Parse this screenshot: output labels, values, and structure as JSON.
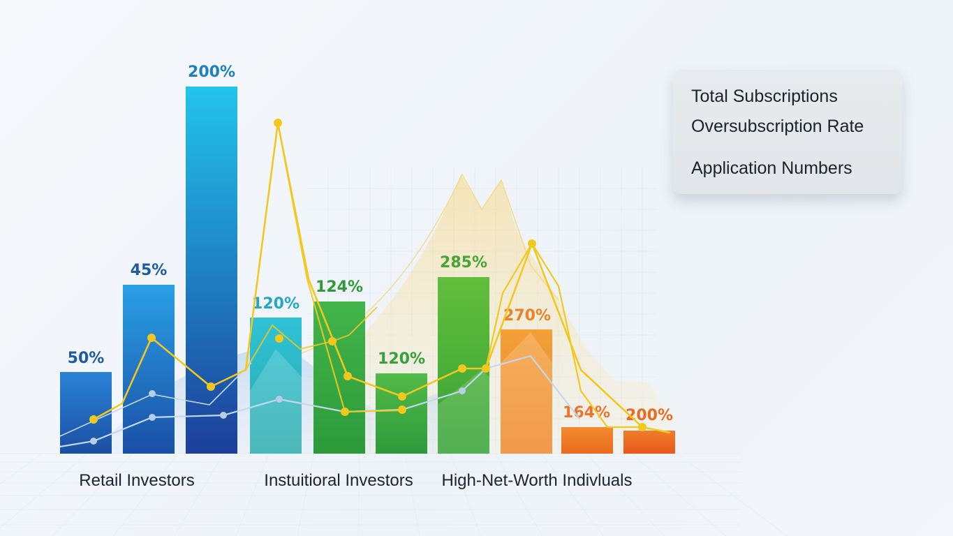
{
  "legend": {
    "items": [
      "Total Subscriptions",
      "Oversubscription Rate",
      "Application Numbers"
    ]
  },
  "chart_data": {
    "type": "bar",
    "groups": [
      "Retail Investors",
      "Instuitioral Investors",
      "High-Net-Worth Indivluals"
    ],
    "bars": [
      {
        "label": "50%",
        "value": 50,
        "group": "Retail Investors"
      },
      {
        "label": "45%",
        "value": 45,
        "group": "Retail Investors"
      },
      {
        "label": "200%",
        "value": 200,
        "group": "Retail Investors"
      },
      {
        "label": "120%",
        "value": 120,
        "group": "Instuitioral Investors"
      },
      {
        "label": "124%",
        "value": 124,
        "group": "Instuitioral Investors"
      },
      {
        "label": "120%",
        "value": 120,
        "group": "Instuitioral Investors"
      },
      {
        "label": "285%",
        "value": 285,
        "group": "High-Net-Worth Indivluals"
      },
      {
        "label": "270%",
        "value": 270,
        "group": "High-Net-Worth Indivluals"
      },
      {
        "label": "164%",
        "value": 164,
        "group": "High-Net-Worth Indivluals"
      },
      {
        "label": "200%",
        "value": 200,
        "group": "High-Net-Worth Indivluals"
      }
    ],
    "series": [
      {
        "name": "Oversubscription Rate",
        "type": "line",
        "values": [
          45,
          70,
          35,
          190,
          60,
          62,
          40,
          50,
          120,
          48,
          45,
          45
        ],
        "color": "#f2c81e"
      },
      {
        "name": "Application Numbers",
        "type": "line",
        "values": [
          20,
          33,
          25,
          28,
          25,
          26,
          28,
          26,
          25,
          26
        ],
        "color": "#a9c6e8"
      }
    ],
    "colors": {
      "bars": [
        [
          "#2a83d6",
          "#1a4fa3"
        ],
        [
          "#2aa0e6",
          "#1a4fa6"
        ],
        [
          "#22c4ec",
          "#1c3f9a"
        ],
        [
          "#2fc2d6",
          "#27a9ab"
        ],
        [
          "#42b54a",
          "#2c9a3a"
        ],
        [
          "#52ba48",
          "#2e9a3c"
        ],
        [
          "#63be3c",
          "#34a236"
        ],
        [
          "#f3a038",
          "#f08324"
        ],
        [
          "#f08b2e",
          "#ec6a1c"
        ],
        [
          "#ef7d2a",
          "#e9581c"
        ]
      ],
      "labels": [
        "#1d5aa2",
        "#1d5aa2",
        "#1f7fbf",
        "#21a8c4",
        "#2e9a3a",
        "#36a03a",
        "#46a535",
        "#e9822a",
        "#e9742a",
        "#e96a24"
      ]
    },
    "ylim": [
      0,
      300
    ],
    "grid": true,
    "legend_position": "top-right"
  }
}
